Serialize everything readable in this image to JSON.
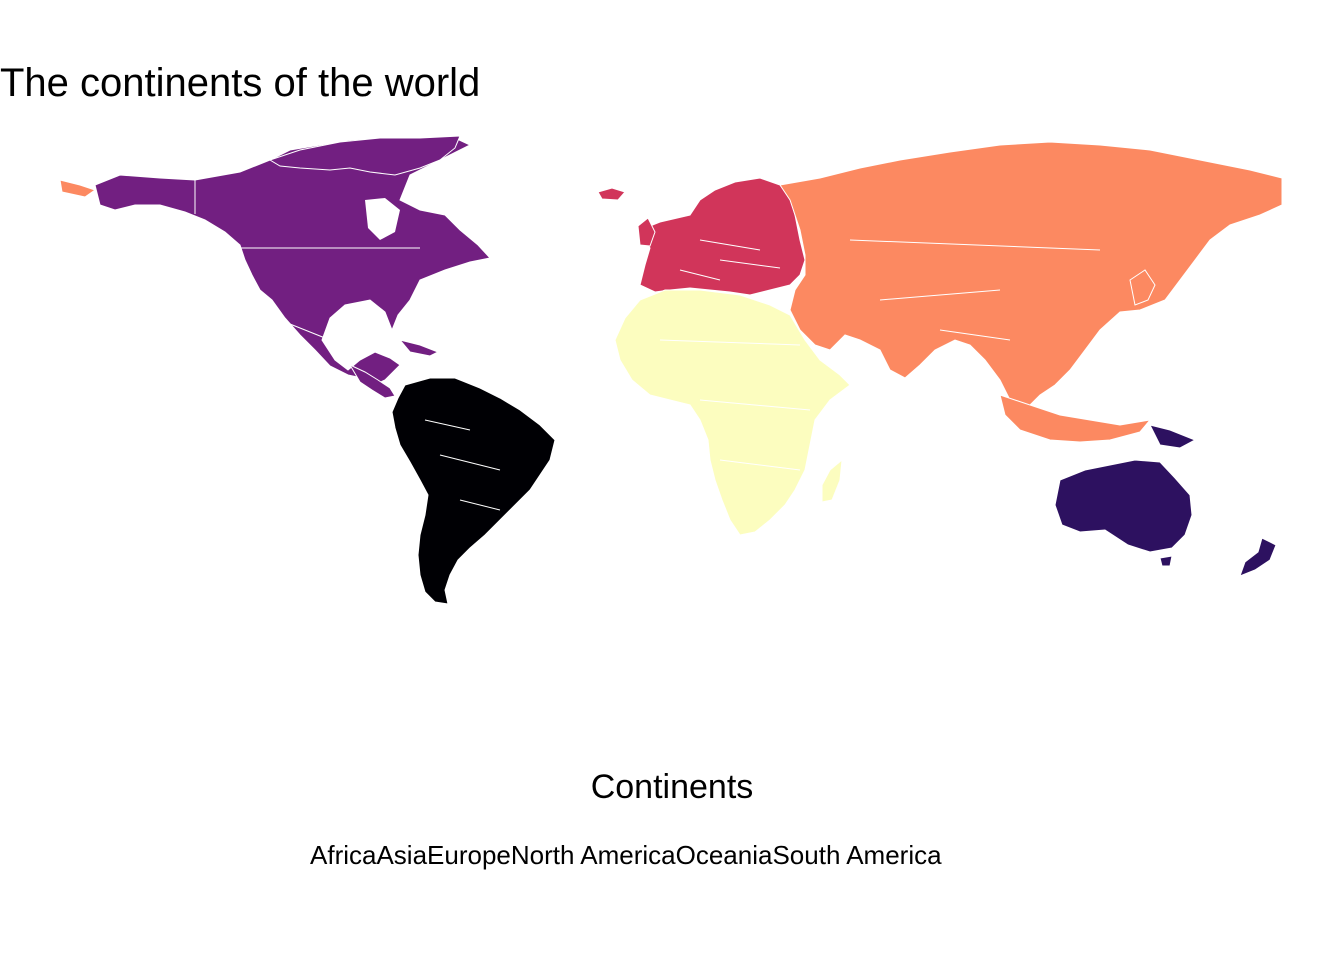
{
  "title": "The continents of the world",
  "legend": {
    "title": "Continents",
    "items": [
      {
        "label": "Africa",
        "color": "#FCFDBF"
      },
      {
        "label": "Asia",
        "color": "#FC8961"
      },
      {
        "label": "Europe",
        "color": "#D1355A"
      },
      {
        "label": "North America",
        "color": "#721F81"
      },
      {
        "label": "Oceania",
        "color": "#2D1160"
      },
      {
        "label": "South America",
        "color": "#000004"
      }
    ]
  },
  "border_color": "#ffffff"
}
